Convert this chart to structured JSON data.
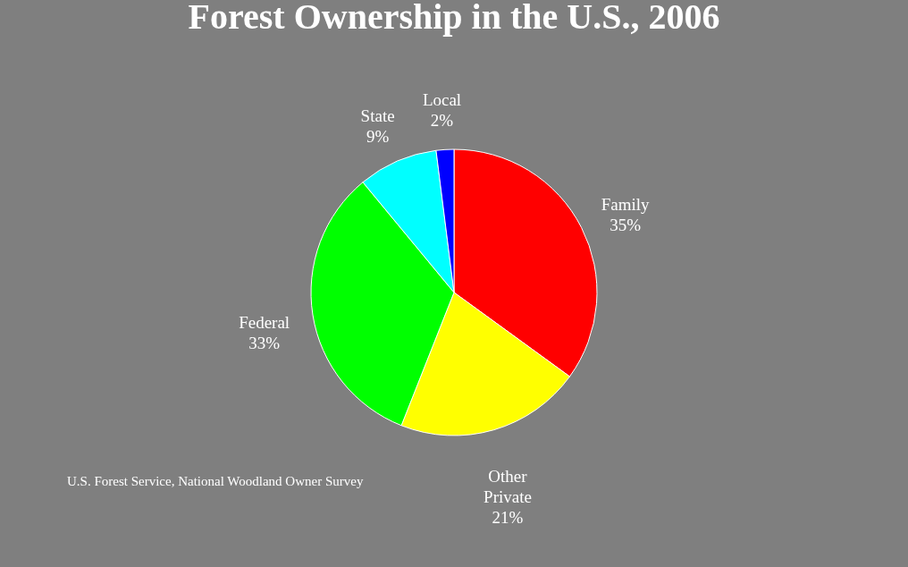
{
  "chart_data": {
    "type": "pie",
    "title": "Forest Ownership in the U.S., 2006",
    "categories": [
      "Family",
      "Other Private",
      "Federal",
      "State",
      "Local"
    ],
    "values": [
      35,
      21,
      33,
      9,
      2
    ],
    "value_labels": [
      "35%",
      "21%",
      "33%",
      "9%",
      "2%"
    ],
    "colors": [
      "#ff0000",
      "#ffff00",
      "#00ff00",
      "#00ffff",
      "#0000ff"
    ],
    "legend": false,
    "annotations": [
      "U.S. Forest Service, National Woodland Owner Survey"
    ]
  }
}
